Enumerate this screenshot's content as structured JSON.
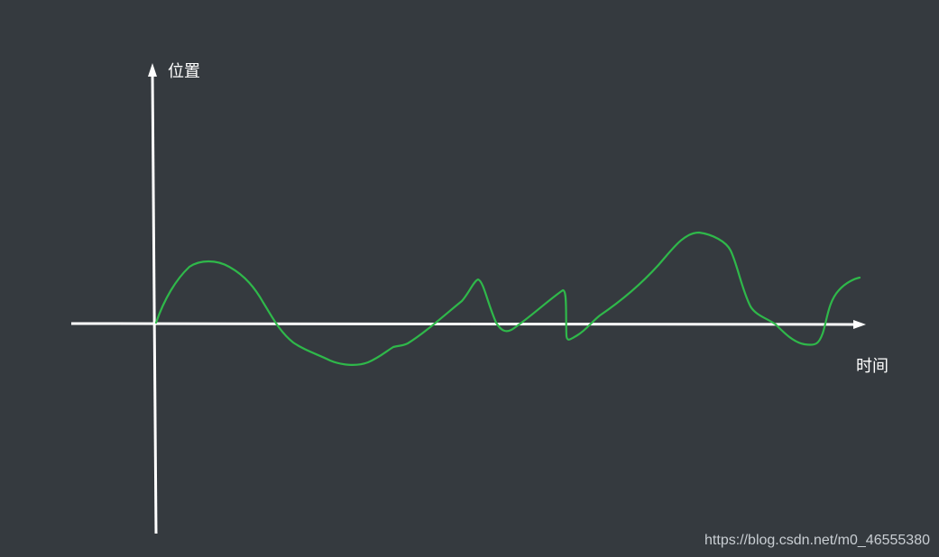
{
  "diagram": {
    "y_axis_label": "位置",
    "x_axis_label": "时间",
    "curve_color": "#2fb84a",
    "axis_color": "#ffffff",
    "background_color": "#353a3f"
  },
  "watermark": "https://blog.csdn.net/m0_46555380"
}
